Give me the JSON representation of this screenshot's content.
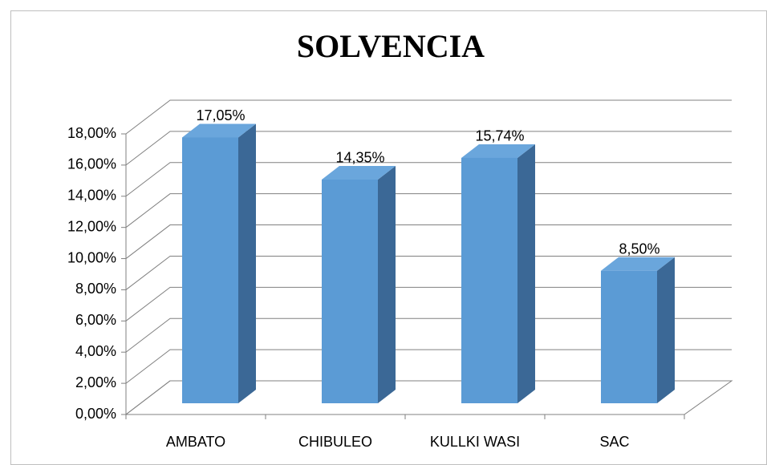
{
  "chart_data": {
    "type": "bar3d",
    "title": "SOLVENCIA",
    "categories": [
      "AMBATO",
      "CHIBULEO",
      "KULLKI WASI",
      "SAC"
    ],
    "values": [
      17.05,
      14.35,
      15.74,
      8.5
    ],
    "value_labels": [
      "17,05%",
      "14,35%",
      "15,74%",
      "8,50%"
    ],
    "color": "#5b9bd5",
    "ylim": [
      0,
      18
    ],
    "yticks": [
      {
        "value": 0,
        "label": "0,00%"
      },
      {
        "value": 2,
        "label": "2,00%"
      },
      {
        "value": 4,
        "label": "4,00%"
      },
      {
        "value": 6,
        "label": "6,00%"
      },
      {
        "value": 8,
        "label": "8,00%"
      },
      {
        "value": 10,
        "label": "10,00%"
      },
      {
        "value": 12,
        "label": "12,00%"
      },
      {
        "value": 14,
        "label": "14,00%"
      },
      {
        "value": 16,
        "label": "16,00%"
      },
      {
        "value": 18,
        "label": "18,00%"
      }
    ],
    "grid": true
  }
}
